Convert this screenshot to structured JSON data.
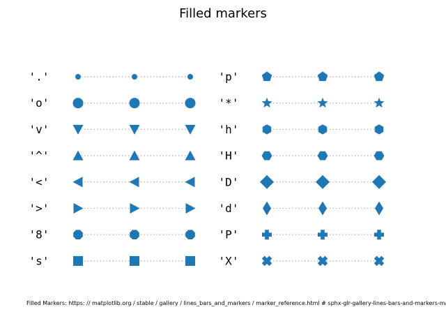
{
  "chart_data": {
    "type": "scatter",
    "title": "Filled markers",
    "color": "#1f77b4",
    "guide_color": "#bfbfbf",
    "x": [
      0,
      1,
      2
    ],
    "columns": [
      {
        "markers": [
          {
            "label": "'.'",
            "marker": "point"
          },
          {
            "label": "'o'",
            "marker": "circle"
          },
          {
            "label": "'v'",
            "marker": "triangle-down"
          },
          {
            "label": "'^'",
            "marker": "triangle-up"
          },
          {
            "label": "'<'",
            "marker": "triangle-left"
          },
          {
            "label": "'>'",
            "marker": "triangle-right"
          },
          {
            "label": "'8'",
            "marker": "octagon"
          },
          {
            "label": "'s'",
            "marker": "square"
          }
        ]
      },
      {
        "markers": [
          {
            "label": "'p'",
            "marker": "pentagon"
          },
          {
            "label": "'*'",
            "marker": "star"
          },
          {
            "label": "'h'",
            "marker": "hexagon-1"
          },
          {
            "label": "'H'",
            "marker": "hexagon-2"
          },
          {
            "label": "'D'",
            "marker": "diamond"
          },
          {
            "label": "'d'",
            "marker": "thin-diamond"
          },
          {
            "label": "'P'",
            "marker": "plus-filled"
          },
          {
            "label": "'X'",
            "marker": "x-filled"
          }
        ]
      }
    ],
    "caption": "Filled Markers: https: // matplotlib.org / stable / gallery / lines_bars_and_markers / marker_reference.html  # sphx-glr-gallery-lines-bars-and-markers-marker-reference-py"
  }
}
